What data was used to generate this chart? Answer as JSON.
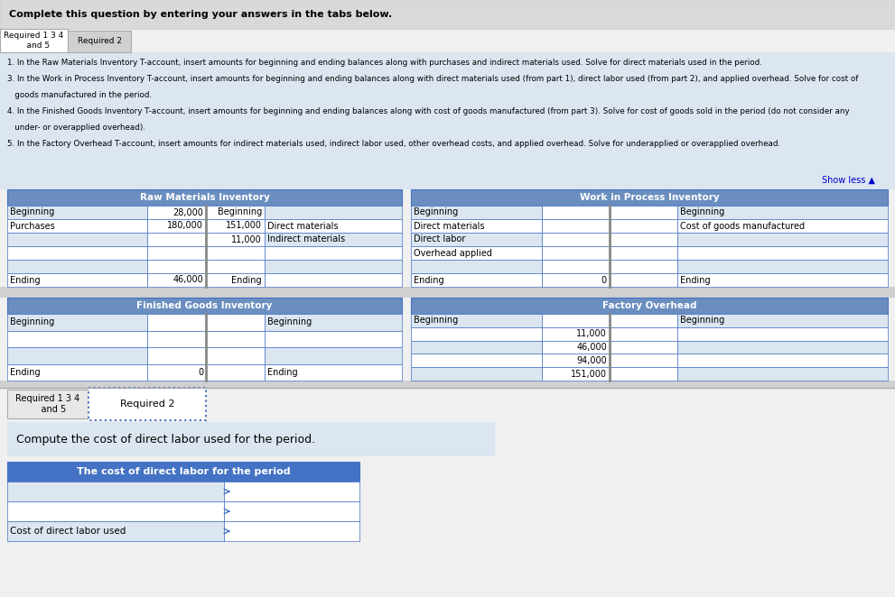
{
  "title_text": "Complete this question by entering your answers in the tabs below.",
  "tab1_label": "Required 1 3 4\n    and 5",
  "tab2_label": "Required 2",
  "instr_lines": [
    "1. In the Raw Materials Inventory T-account, insert amounts for beginning and ending balances along with purchases and indirect materials used. Solve for direct materials used in the period.",
    "3. In the Work in Process Inventory T-account, insert amounts for beginning and ending balances along with direct materials used (from part 1), direct labor used (from part 2), and applied overhead. Solve for cost of goods manufactured in the period.",
    "4. In the Finished Goods Inventory T-account, insert amounts for beginning and ending balances along with cost of goods manufactured (from part 3). Solve for cost of goods sold in the period (do not consider any under- or overapplied overhead).",
    "5. In the Factory Overhead T-account, insert amounts for indirect materials used, indirect labor used, other overhead costs, and applied overhead. Solve for underapplied or overapplied overhead."
  ],
  "show_less": "Show less ▲",
  "header_bg": "#6a8ebf",
  "header_text_color": "#ffffff",
  "border_color": "#4472c4",
  "light_row_bg": "#dce6f1",
  "white_bg": "#ffffff",
  "gray_bg": "#e8e8e8",
  "dark_gray_bg": "#d0d0d0",
  "instr_bg": "#dce6f1",
  "title_bg": "#d9d9d9",
  "overall_bg": "#f0f0f0",
  "rm_title": "Raw Materials Inventory",
  "wip_title": "Work in Process Inventory",
  "fg_title": "Finished Goods Inventory",
  "fo_title": "Factory Overhead",
  "rm_left": [
    [
      "Beginning",
      "28,000"
    ],
    [
      "Purchases",
      "180,000"
    ],
    [
      "",
      ""
    ],
    [
      "",
      ""
    ],
    [
      "",
      ""
    ],
    [
      "Ending",
      "46,000"
    ]
  ],
  "rm_right": [
    [
      "Beginning",
      ""
    ],
    [
      "151,000",
      "Direct materials"
    ],
    [
      "11,000",
      "Indirect materials"
    ],
    [
      "",
      ""
    ],
    [
      "",
      ""
    ],
    [
      "Ending",
      ""
    ]
  ],
  "wip_left": [
    [
      "Beginning",
      ""
    ],
    [
      "Direct materials",
      ""
    ],
    [
      "Direct labor",
      ""
    ],
    [
      "Overhead applied",
      ""
    ],
    [
      "",
      ""
    ],
    [
      "Ending",
      "0"
    ]
  ],
  "wip_right": [
    [
      "Beginning",
      ""
    ],
    [
      "Cost of goods manufactured",
      ""
    ],
    [
      "",
      ""
    ],
    [
      "",
      ""
    ],
    [
      "",
      ""
    ],
    [
      "Ending",
      ""
    ]
  ],
  "fg_left": [
    [
      "Beginning",
      ""
    ],
    [
      "",
      ""
    ],
    [
      "",
      ""
    ],
    [
      "Ending",
      "0"
    ]
  ],
  "fg_right": [
    [
      "Beginning",
      ""
    ],
    [
      "",
      ""
    ],
    [
      "",
      ""
    ],
    [
      "Ending",
      ""
    ]
  ],
  "fo_left": [
    [
      "Beginning",
      ""
    ],
    [
      "",
      "11,000"
    ],
    [
      "",
      "46,000"
    ],
    [
      "",
      "94,000"
    ],
    [
      "",
      "151,000"
    ]
  ],
  "fo_right": [
    [
      "Beginning",
      ""
    ],
    [
      "",
      ""
    ],
    [
      "",
      ""
    ],
    [
      "",
      ""
    ],
    [
      "",
      ""
    ]
  ],
  "compute_text": "Compute the cost of direct labor used for the period.",
  "table2_title": "The cost of direct labor for the period",
  "table2_rows": [
    [
      "",
      ""
    ],
    [
      "",
      ""
    ],
    [
      "Cost of direct labor used",
      ""
    ]
  ],
  "bottom_tab1": "Required 1 3 4\n    and 5",
  "bottom_tab2": "Required 2"
}
